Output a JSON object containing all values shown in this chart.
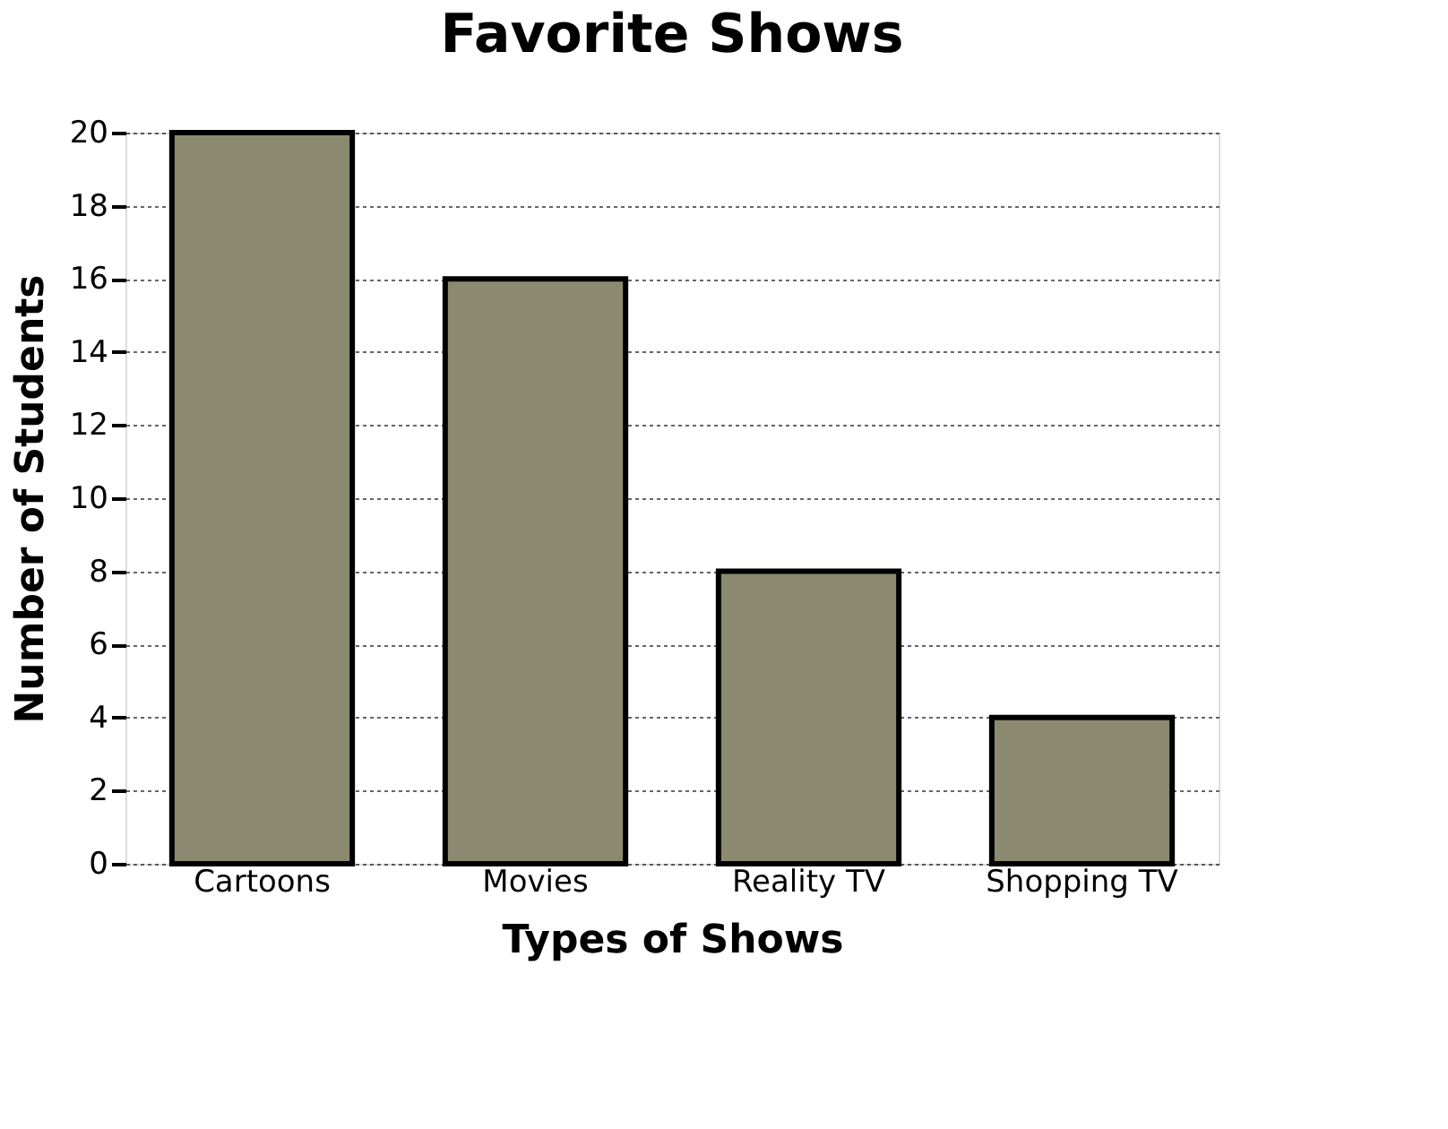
{
  "chart_data": {
    "type": "bar",
    "title": "Favorite Shows",
    "xlabel": "Types of Shows",
    "ylabel": "Number of Students",
    "categories": [
      "Cartoons",
      "Movies",
      "Reality TV",
      "Shopping TV"
    ],
    "values": [
      20,
      16,
      8,
      4
    ],
    "color": "#8b8a70",
    "ylim": [
      0,
      20
    ],
    "yticks": [
      0,
      2,
      4,
      6,
      8,
      10,
      12,
      14,
      16,
      18,
      20
    ],
    "grid": "y"
  }
}
